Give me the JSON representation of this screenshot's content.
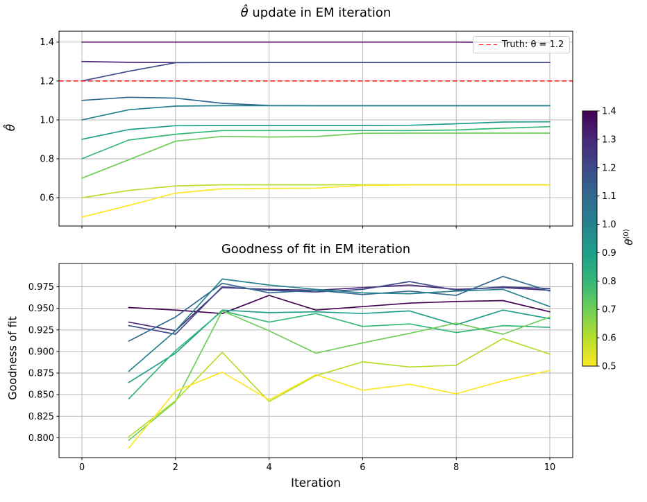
{
  "figure": {
    "background": "#ffffff"
  },
  "styles": {
    "grid_color": "#b0b0b0",
    "spine_color": "#000000",
    "text_color": "#000000",
    "line_width": 1.7,
    "tick_font_size": 13
  },
  "legend": {
    "label": "Truth: θ = 1.2",
    "dash_color": "#ff0000"
  },
  "chart_data": [
    {
      "id": "theta-update",
      "type": "line",
      "title_math": "θ̂",
      "title_text": " update in EM iteration",
      "ylabel": "θ̂",
      "xlim": [
        -0.49,
        10.49
      ],
      "ylim": [
        0.454,
        1.456
      ],
      "xticks": [
        0,
        2,
        4,
        6,
        8,
        10
      ],
      "xtick_labels": null,
      "yticks": [
        0.6,
        0.8,
        1.0,
        1.2,
        1.4
      ],
      "ytick_labels": [
        "0.6",
        "0.8",
        "1.0",
        "1.2",
        "1.4"
      ],
      "grid": true,
      "x": [
        0,
        1,
        2,
        3,
        4,
        5,
        6,
        7,
        8,
        9,
        10
      ],
      "truth": {
        "value": 1.2,
        "label": "Truth: θ = 1.2",
        "color": "#ff0000",
        "style": "dashed"
      },
      "legend_position": "upper right",
      "series": [
        {
          "name": "1.4",
          "color": "#440154",
          "values": [
            1.4,
            1.4,
            1.4,
            1.4,
            1.4,
            1.4,
            1.4,
            1.4,
            1.4,
            1.399,
            1.398
          ]
        },
        {
          "name": "1.3",
          "color": "#482878",
          "values": [
            1.3,
            1.296,
            1.295,
            1.295,
            1.295,
            1.295,
            1.295,
            1.295,
            1.295,
            1.295,
            1.295
          ]
        },
        {
          "name": "1.2",
          "color": "#3e4a89",
          "values": [
            1.2,
            1.25,
            1.294,
            1.295,
            1.295,
            1.295,
            1.295,
            1.295,
            1.295,
            1.295,
            1.295
          ]
        },
        {
          "name": "1.1",
          "color": "#31688e",
          "values": [
            1.1,
            1.116,
            1.112,
            1.085,
            1.074,
            1.073,
            1.073,
            1.073,
            1.073,
            1.073,
            1.073
          ]
        },
        {
          "name": "1.0",
          "color": "#26828e",
          "values": [
            1.0,
            1.052,
            1.071,
            1.073,
            1.073,
            1.073,
            1.073,
            1.073,
            1.073,
            1.073,
            1.073
          ]
        },
        {
          "name": "0.9",
          "color": "#1f9e89",
          "values": [
            0.9,
            0.95,
            0.97,
            0.971,
            0.971,
            0.971,
            0.971,
            0.972,
            0.98,
            0.989,
            0.99
          ]
        },
        {
          "name": "0.8",
          "color": "#35b779",
          "values": [
            0.8,
            0.896,
            0.926,
            0.945,
            0.945,
            0.945,
            0.945,
            0.945,
            0.948,
            0.957,
            0.965
          ]
        },
        {
          "name": "0.7",
          "color": "#6ece58",
          "values": [
            0.7,
            0.795,
            0.89,
            0.915,
            0.912,
            0.914,
            0.931,
            0.932,
            0.932,
            0.932,
            0.932
          ]
        },
        {
          "name": "0.6",
          "color": "#b5de2b",
          "values": [
            0.6,
            0.637,
            0.66,
            0.666,
            0.666,
            0.666,
            0.666,
            0.666,
            0.666,
            0.666,
            0.666
          ]
        },
        {
          "name": "0.5",
          "color": "#fde725",
          "values": [
            0.5,
            0.56,
            0.623,
            0.645,
            0.648,
            0.649,
            0.663,
            0.665,
            0.665,
            0.665,
            0.665
          ]
        }
      ]
    },
    {
      "id": "goodness-of-fit",
      "type": "line",
      "title_text": "Goodness of fit in EM iteration",
      "ylabel": "Goodness of fit",
      "xlabel": "Iteration",
      "xlim": [
        -0.49,
        10.49
      ],
      "ylim": [
        0.777,
        1.002
      ],
      "xticks": [
        0,
        2,
        4,
        6,
        8,
        10
      ],
      "xtick_labels": [
        "0",
        "2",
        "4",
        "6",
        "8",
        "10"
      ],
      "yticks": [
        0.8,
        0.825,
        0.85,
        0.875,
        0.9,
        0.925,
        0.95,
        0.975
      ],
      "ytick_labels": [
        "0.800",
        "0.825",
        "0.850",
        "0.875",
        "0.900",
        "0.925",
        "0.950",
        "0.975"
      ],
      "grid": true,
      "x": [
        1,
        2,
        3,
        4,
        5,
        6,
        7,
        8,
        9,
        10
      ],
      "series": [
        {
          "name": "1.4",
          "color": "#440154",
          "values": [
            0.951,
            0.948,
            0.944,
            0.965,
            0.948,
            0.952,
            0.956,
            0.958,
            0.959,
            0.946
          ]
        },
        {
          "name": "1.3",
          "color": "#482878",
          "values": [
            0.934,
            0.924,
            0.974,
            0.972,
            0.971,
            0.974,
            0.977,
            0.972,
            0.974,
            0.971
          ]
        },
        {
          "name": "1.2",
          "color": "#3e4a89",
          "values": [
            0.93,
            0.92,
            0.975,
            0.971,
            0.969,
            0.972,
            0.981,
            0.971,
            0.975,
            0.973
          ]
        },
        {
          "name": "1.1",
          "color": "#31688e",
          "values": [
            0.912,
            0.94,
            0.979,
            0.968,
            0.971,
            0.966,
            0.97,
            0.965,
            0.987,
            0.97
          ]
        },
        {
          "name": "1.0",
          "color": "#26828e",
          "values": [
            0.877,
            0.924,
            0.984,
            0.977,
            0.972,
            0.968,
            0.967,
            0.97,
            0.972,
            0.952
          ]
        },
        {
          "name": "0.9",
          "color": "#1f9e89",
          "values": [
            0.864,
            0.898,
            0.948,
            0.945,
            0.946,
            0.944,
            0.947,
            0.931,
            0.948,
            0.938
          ]
        },
        {
          "name": "0.8",
          "color": "#35b779",
          "values": [
            0.845,
            0.901,
            0.947,
            0.934,
            0.944,
            0.929,
            0.932,
            0.922,
            0.93,
            0.928
          ]
        },
        {
          "name": "0.7",
          "color": "#6ece58",
          "values": [
            0.797,
            0.842,
            0.947,
            0.924,
            0.898,
            0.91,
            0.921,
            0.933,
            0.92,
            0.94
          ]
        },
        {
          "name": "0.6",
          "color": "#b5de2b",
          "values": [
            0.801,
            0.843,
            0.899,
            0.842,
            0.872,
            0.888,
            0.882,
            0.884,
            0.915,
            0.897
          ]
        },
        {
          "name": "0.5",
          "color": "#fde725",
          "values": [
            0.788,
            0.854,
            0.876,
            0.844,
            0.873,
            0.855,
            0.862,
            0.851,
            0.866,
            0.878
          ]
        }
      ]
    },
    {
      "id": "colorbar",
      "type": "colorbar",
      "label_base": "θ",
      "label_sup": "(0)",
      "ticks": [
        1.4,
        1.3,
        1.2,
        1.1,
        1.0,
        0.9,
        0.8,
        0.7,
        0.6,
        0.5
      ],
      "tick_labels": [
        "1.4",
        "1.3",
        "1.2",
        "1.1",
        "1.0",
        "0.9",
        "0.8",
        "0.7",
        "0.6",
        "0.5"
      ],
      "gradient_top_to_bottom": [
        "#440154",
        "#482878",
        "#3e4a89",
        "#31688e",
        "#26828e",
        "#1f9e89",
        "#35b779",
        "#6ece58",
        "#b5de2b",
        "#fde725"
      ]
    }
  ]
}
